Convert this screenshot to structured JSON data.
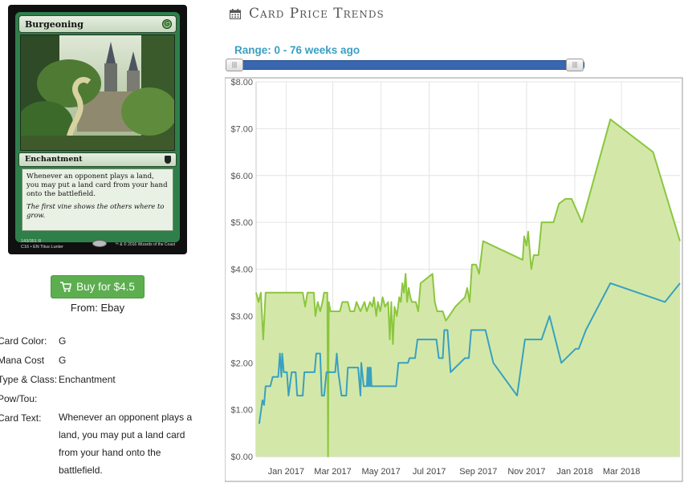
{
  "card": {
    "name": "Burgeoning",
    "mana_symbol": "G",
    "type_line": "Enchantment",
    "rules_text": "Whenever an opponent plays a land, you may put a land card from your hand onto the battlefield.",
    "flavor_text": "The first vine shows the others where to grow.",
    "collector_info": "143/351 R",
    "set_info": "C16 • EN",
    "artist": "Titus Lunter",
    "copyright": "™ & © 2016 Wizards of the Coast"
  },
  "buy": {
    "label": "Buy for $4.5",
    "from": "From: Ebay"
  },
  "details": [
    {
      "label": "Card Color:",
      "value": "G"
    },
    {
      "label": "Mana Cost",
      "value": "G"
    },
    {
      "label": "Type & Class:",
      "value": "Enchantment"
    },
    {
      "label": "Pow/Tou:",
      "value": ""
    },
    {
      "label": "Card Text:",
      "value": "Whenever an opponent plays a land, you may put a land card from your hand onto the battlefield."
    }
  ],
  "chart_header": {
    "title": "Card Price Trends",
    "range_label": "Range: 0 - 76 weeks ago",
    "handle_left_glyph": "|||",
    "handle_right_glyph": "|||"
  },
  "chart_data": {
    "type": "area",
    "title": "",
    "xlabel": "",
    "ylabel": "",
    "ylim": [
      0,
      8
    ],
    "y_ticks": [
      "$0.00",
      "$1.00",
      "$2.00",
      "$3.00",
      "$4.00",
      "$5.00",
      "$6.00",
      "$7.00",
      "$8.00"
    ],
    "x_range": [
      "2016-11-24",
      "2018-05-14"
    ],
    "x_ticks": [
      {
        "date": "2017-01-01",
        "label": "Jan 2017"
      },
      {
        "date": "2017-03-01",
        "label": "Mar 2017"
      },
      {
        "date": "2017-05-01",
        "label": "May 2017"
      },
      {
        "date": "2017-07-01",
        "label": "Jul 2017"
      },
      {
        "date": "2017-09-01",
        "label": "Sep 2017"
      },
      {
        "date": "2017-11-01",
        "label": "Nov 2017"
      },
      {
        "date": "2018-01-01",
        "label": "Jan 2018"
      },
      {
        "date": "2018-03-01",
        "label": "Mar 2018"
      }
    ],
    "grid": true,
    "colors": {
      "green": "#8cc63f",
      "green_fill": "#d3e8a8",
      "blue": "#3aa0c0"
    },
    "series": [
      {
        "color": "#8cc63f",
        "filled": true,
        "points": [
          [
            "2016-11-24",
            3.5
          ],
          [
            "2016-11-27",
            3.3
          ],
          [
            "2016-11-30",
            3.5
          ],
          [
            "2016-12-03",
            2.5
          ],
          [
            "2016-12-06",
            3.5
          ],
          [
            "2016-12-25",
            3.5
          ],
          [
            "2017-01-15",
            3.5
          ],
          [
            "2017-01-22",
            3.5
          ],
          [
            "2017-01-25",
            3.2
          ],
          [
            "2017-01-28",
            3.5
          ],
          [
            "2017-02-05",
            3.5
          ],
          [
            "2017-02-07",
            3.0
          ],
          [
            "2017-02-10",
            3.3
          ],
          [
            "2017-02-13",
            3.1
          ],
          [
            "2017-02-16",
            3.3
          ],
          [
            "2017-02-18",
            3.5
          ],
          [
            "2017-02-22",
            3.5
          ],
          [
            "2017-02-23",
            0.0
          ],
          [
            "2017-02-24",
            3.3
          ],
          [
            "2017-02-26",
            3.1
          ],
          [
            "2017-03-10",
            3.1
          ],
          [
            "2017-03-13",
            3.3
          ],
          [
            "2017-03-20",
            3.3
          ],
          [
            "2017-03-23",
            3.1
          ],
          [
            "2017-03-28",
            3.1
          ],
          [
            "2017-03-31",
            3.3
          ],
          [
            "2017-04-05",
            3.1
          ],
          [
            "2017-04-10",
            3.3
          ],
          [
            "2017-04-13",
            3.1
          ],
          [
            "2017-04-17",
            3.3
          ],
          [
            "2017-04-20",
            3.2
          ],
          [
            "2017-04-22",
            3.4
          ],
          [
            "2017-04-25",
            3.0
          ],
          [
            "2017-04-27",
            3.3
          ],
          [
            "2017-04-30",
            3.1
          ],
          [
            "2017-05-03",
            3.4
          ],
          [
            "2017-05-06",
            3.2
          ],
          [
            "2017-05-10",
            3.3
          ],
          [
            "2017-05-12",
            2.5
          ],
          [
            "2017-05-14",
            3.3
          ],
          [
            "2017-05-16",
            2.4
          ],
          [
            "2017-05-18",
            3.2
          ],
          [
            "2017-05-21",
            3.0
          ],
          [
            "2017-05-24",
            3.4
          ],
          [
            "2017-05-26",
            3.3
          ],
          [
            "2017-05-28",
            3.7
          ],
          [
            "2017-05-30",
            3.5
          ],
          [
            "2017-06-01",
            3.9
          ],
          [
            "2017-06-03",
            3.3
          ],
          [
            "2017-06-05",
            3.6
          ],
          [
            "2017-06-07",
            3.4
          ],
          [
            "2017-06-09",
            3.3
          ],
          [
            "2017-06-14",
            3.3
          ],
          [
            "2017-06-17",
            3.1
          ],
          [
            "2017-06-20",
            3.7
          ],
          [
            "2017-07-05",
            3.9
          ],
          [
            "2017-07-08",
            3.3
          ],
          [
            "2017-07-11",
            3.1
          ],
          [
            "2017-07-18",
            3.1
          ],
          [
            "2017-07-22",
            2.9
          ],
          [
            "2017-07-26",
            3.0
          ],
          [
            "2017-08-03",
            3.2
          ],
          [
            "2017-08-15",
            3.4
          ],
          [
            "2017-08-18",
            3.6
          ],
          [
            "2017-08-21",
            3.3
          ],
          [
            "2017-08-24",
            4.1
          ],
          [
            "2017-08-29",
            4.1
          ],
          [
            "2017-09-02",
            3.9
          ],
          [
            "2017-09-07",
            4.6
          ],
          [
            "2017-10-27",
            4.2
          ],
          [
            "2017-10-29",
            4.7
          ],
          [
            "2017-11-01",
            4.5
          ],
          [
            "2017-11-03",
            4.8
          ],
          [
            "2017-11-07",
            4.0
          ],
          [
            "2017-11-10",
            4.3
          ],
          [
            "2017-11-16",
            4.3
          ],
          [
            "2017-11-20",
            5.0
          ],
          [
            "2017-12-05",
            5.0
          ],
          [
            "2017-12-12",
            5.4
          ],
          [
            "2017-12-20",
            5.5
          ],
          [
            "2017-12-28",
            5.5
          ],
          [
            "2018-01-10",
            5.0
          ],
          [
            "2018-02-15",
            7.2
          ],
          [
            "2018-04-10",
            6.5
          ],
          [
            "2018-05-14",
            4.6
          ]
        ]
      },
      {
        "color": "#3aa0c0",
        "filled": false,
        "points": [
          [
            "2016-11-28",
            0.7
          ],
          [
            "2016-12-02",
            1.2
          ],
          [
            "2016-12-04",
            1.1
          ],
          [
            "2016-12-06",
            1.5
          ],
          [
            "2016-12-12",
            1.5
          ],
          [
            "2016-12-15",
            1.7
          ],
          [
            "2016-12-22",
            1.7
          ],
          [
            "2016-12-24",
            2.2
          ],
          [
            "2016-12-26",
            1.7
          ],
          [
            "2016-12-27",
            2.2
          ],
          [
            "2016-12-29",
            1.8
          ],
          [
            "2017-01-02",
            1.8
          ],
          [
            "2017-01-04",
            1.3
          ],
          [
            "2017-01-08",
            1.8
          ],
          [
            "2017-01-13",
            1.8
          ],
          [
            "2017-01-15",
            1.3
          ],
          [
            "2017-01-22",
            1.3
          ],
          [
            "2017-01-24",
            1.8
          ],
          [
            "2017-02-06",
            1.8
          ],
          [
            "2017-02-08",
            2.2
          ],
          [
            "2017-02-13",
            2.2
          ],
          [
            "2017-02-15",
            1.3
          ],
          [
            "2017-02-18",
            1.3
          ],
          [
            "2017-02-21",
            1.8
          ],
          [
            "2017-03-04",
            1.8
          ],
          [
            "2017-03-06",
            2.2
          ],
          [
            "2017-03-08",
            1.8
          ],
          [
            "2017-03-12",
            1.3
          ],
          [
            "2017-03-18",
            1.3
          ],
          [
            "2017-03-20",
            1.9
          ],
          [
            "2017-04-02",
            1.9
          ],
          [
            "2017-04-05",
            1.3
          ],
          [
            "2017-04-06",
            2.0
          ],
          [
            "2017-04-09",
            1.5
          ],
          [
            "2017-04-13",
            1.5
          ],
          [
            "2017-04-14",
            1.9
          ],
          [
            "2017-04-15",
            1.5
          ],
          [
            "2017-04-16",
            1.9
          ],
          [
            "2017-04-17",
            1.5
          ],
          [
            "2017-04-18",
            1.9
          ],
          [
            "2017-04-19",
            1.5
          ],
          [
            "2017-05-20",
            1.5
          ],
          [
            "2017-05-23",
            2.0
          ],
          [
            "2017-06-04",
            2.0
          ],
          [
            "2017-06-06",
            2.1
          ],
          [
            "2017-06-13",
            2.1
          ],
          [
            "2017-06-16",
            2.5
          ],
          [
            "2017-07-10",
            2.5
          ],
          [
            "2017-07-13",
            2.1
          ],
          [
            "2017-07-18",
            2.1
          ],
          [
            "2017-07-20",
            2.7
          ],
          [
            "2017-07-24",
            2.7
          ],
          [
            "2017-07-28",
            1.8
          ],
          [
            "2017-08-15",
            2.1
          ],
          [
            "2017-08-20",
            2.1
          ],
          [
            "2017-08-23",
            2.7
          ],
          [
            "2017-09-10",
            2.7
          ],
          [
            "2017-09-20",
            2.0
          ],
          [
            "2017-10-20",
            1.3
          ],
          [
            "2017-10-30",
            2.5
          ],
          [
            "2017-11-20",
            2.5
          ],
          [
            "2017-11-30",
            3.0
          ],
          [
            "2017-12-15",
            2.0
          ],
          [
            "2018-01-02",
            2.3
          ],
          [
            "2018-01-06",
            2.3
          ],
          [
            "2018-01-15",
            2.7
          ],
          [
            "2018-02-15",
            3.7
          ],
          [
            "2018-04-25",
            3.3
          ],
          [
            "2018-05-14",
            3.7
          ]
        ]
      }
    ]
  }
}
